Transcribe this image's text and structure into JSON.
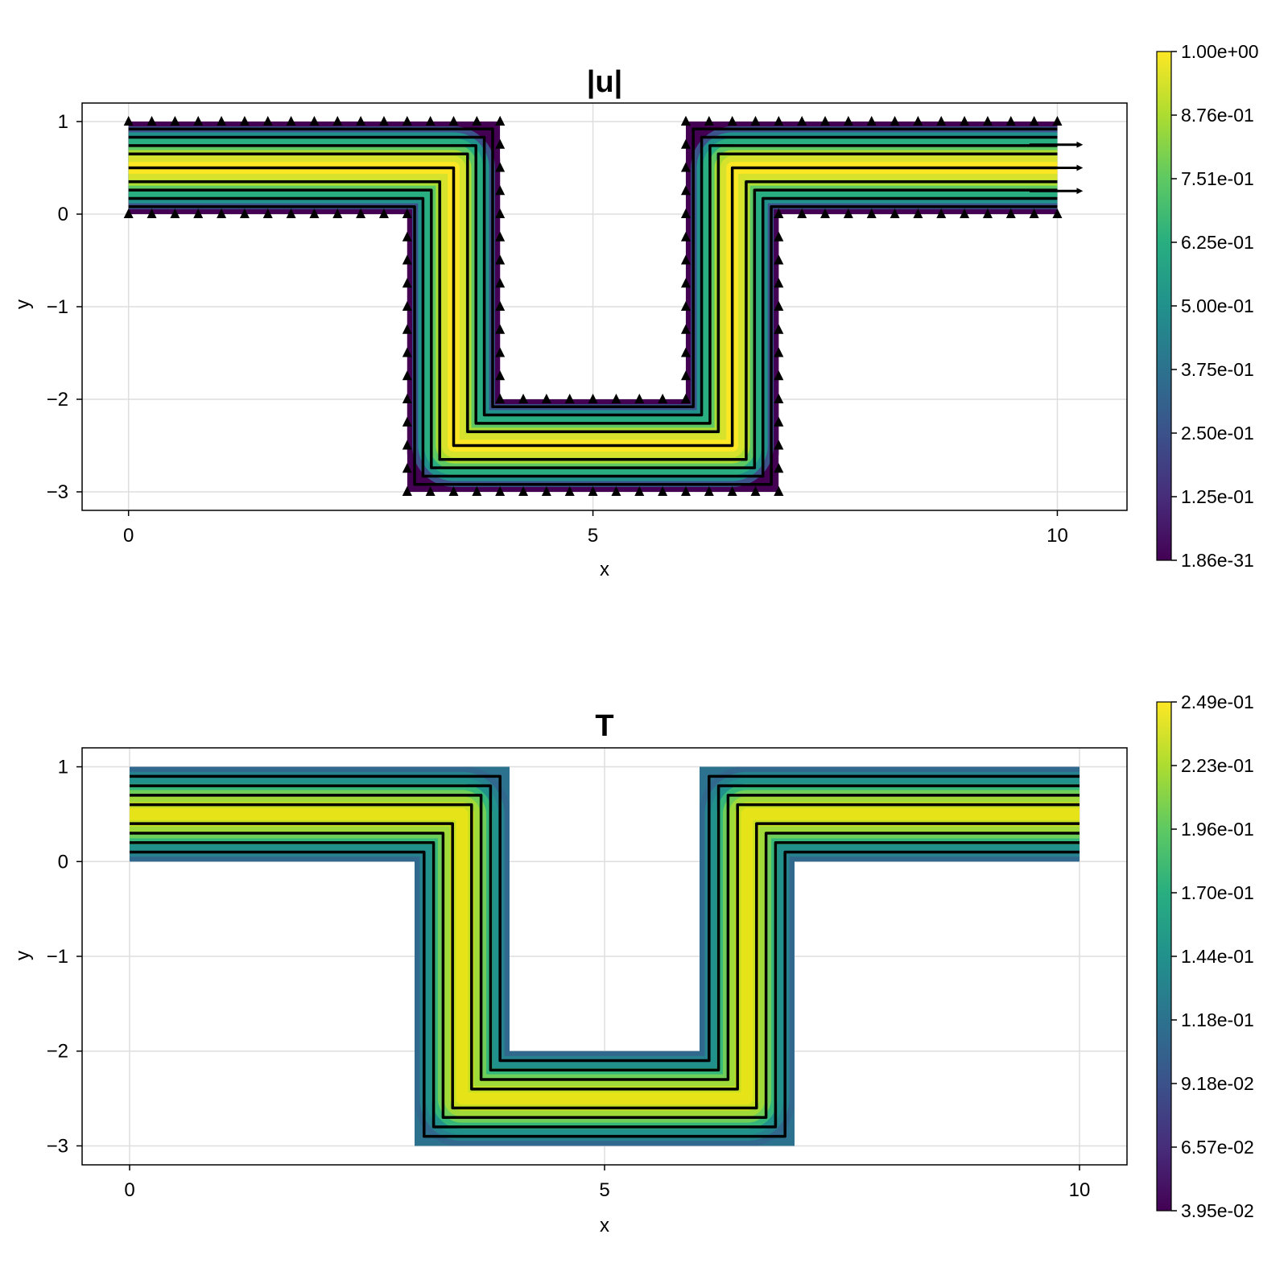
{
  "chart_data": [
    {
      "type": "heatmap",
      "title": "|u|",
      "xlabel": "x",
      "ylabel": "y",
      "xlim": [
        -0.5,
        10.75
      ],
      "ylim": [
        -3.2,
        1.2
      ],
      "xticks": [
        "0",
        "5",
        "10"
      ],
      "yticks": [
        "1",
        "0",
        "−1",
        "−2",
        "−3"
      ],
      "domain_polygon": [
        [
          0,
          1
        ],
        [
          4,
          1
        ],
        [
          4,
          -2
        ],
        [
          6,
          -2
        ],
        [
          6,
          1
        ],
        [
          10,
          1
        ],
        [
          10,
          0
        ],
        [
          7,
          0
        ],
        [
          7,
          -3
        ],
        [
          3,
          -3
        ],
        [
          3,
          0
        ],
        [
          0,
          0
        ]
      ],
      "centerline": [
        [
          0,
          0.5
        ],
        [
          3.5,
          0.5
        ],
        [
          3.5,
          -2.5
        ],
        [
          6.5,
          -2.5
        ],
        [
          6.5,
          0.5
        ],
        [
          10,
          0.5
        ]
      ],
      "colormap": "viridis",
      "colorbar_ticks": [
        "1.00e+00",
        "8.76e-01",
        "7.51e-01",
        "6.25e-01",
        "5.00e-01",
        "3.75e-01",
        "2.50e-01",
        "1.25e-01",
        "1.86e-31"
      ],
      "colorbar_range": [
        1.86e-31,
        1.0
      ],
      "streamlines": true,
      "arrows": true,
      "grid": true
    },
    {
      "type": "heatmap",
      "title": "T",
      "xlabel": "x",
      "ylabel": "y",
      "xlim": [
        -0.5,
        10.5
      ],
      "ylim": [
        -3.2,
        1.2
      ],
      "xticks": [
        "0",
        "5",
        "10"
      ],
      "yticks": [
        "1",
        "0",
        "−1",
        "−2",
        "−3"
      ],
      "domain_polygon": [
        [
          0,
          1
        ],
        [
          4,
          1
        ],
        [
          4,
          -2
        ],
        [
          6,
          -2
        ],
        [
          6,
          1
        ],
        [
          10,
          1
        ],
        [
          10,
          0
        ],
        [
          7,
          0
        ],
        [
          7,
          -3
        ],
        [
          3,
          -3
        ],
        [
          3,
          0
        ],
        [
          0,
          0
        ]
      ],
      "centerline": [
        [
          0,
          0.5
        ],
        [
          3.5,
          0.5
        ],
        [
          3.5,
          -2.5
        ],
        [
          6.5,
          -2.5
        ],
        [
          6.5,
          0.5
        ],
        [
          10,
          0.5
        ]
      ],
      "colormap": "viridis",
      "colorbar_ticks": [
        "2.49e-01",
        "2.23e-01",
        "1.96e-01",
        "1.70e-01",
        "1.44e-01",
        "1.18e-01",
        "9.18e-02",
        "6.57e-02",
        "3.95e-02"
      ],
      "colorbar_range": [
        0.0395,
        0.249
      ],
      "streamlines": true,
      "arrows": false,
      "grid": true
    }
  ]
}
